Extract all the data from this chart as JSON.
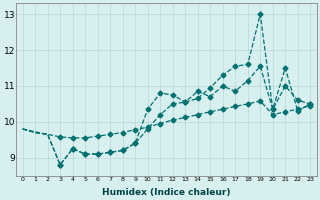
{
  "xlabel": "Humidex (Indice chaleur)",
  "x": [
    0,
    1,
    2,
    3,
    4,
    5,
    6,
    7,
    8,
    9,
    10,
    11,
    12,
    13,
    14,
    15,
    16,
    17,
    18,
    19,
    20,
    21,
    22,
    23
  ],
  "line1": [
    9.8,
    9.7,
    9.65,
    8.8,
    9.25,
    9.1,
    9.1,
    9.15,
    9.2,
    9.4,
    9.8,
    10.2,
    10.5,
    10.55,
    10.65,
    10.95,
    11.3,
    11.55,
    11.6,
    13.0,
    10.35,
    11.5,
    10.3,
    10.5
  ],
  "line2": [
    9.8,
    9.7,
    9.65,
    8.8,
    9.25,
    9.1,
    9.1,
    9.15,
    9.2,
    9.4,
    10.35,
    10.8,
    10.75,
    10.55,
    10.85,
    10.7,
    11.0,
    10.85,
    11.15,
    11.55,
    10.35,
    11.0,
    10.6,
    10.5
  ],
  "line3": [
    9.8,
    9.72,
    9.65,
    9.58,
    9.55,
    9.55,
    9.6,
    9.65,
    9.7,
    9.78,
    9.85,
    9.95,
    10.05,
    10.12,
    10.2,
    10.28,
    10.35,
    10.43,
    10.5,
    10.58,
    10.2,
    10.28,
    10.35,
    10.45
  ],
  "line_color": "#007070",
  "bg_color": "#d8efef",
  "grid_color_minor": "#c5e3e3",
  "grid_color_major": "#b8d8d8",
  "ylim": [
    8.5,
    13.3
  ],
  "xlim": [
    -0.5,
    23.5
  ],
  "yticks": [
    9,
    10,
    11,
    12,
    13
  ]
}
